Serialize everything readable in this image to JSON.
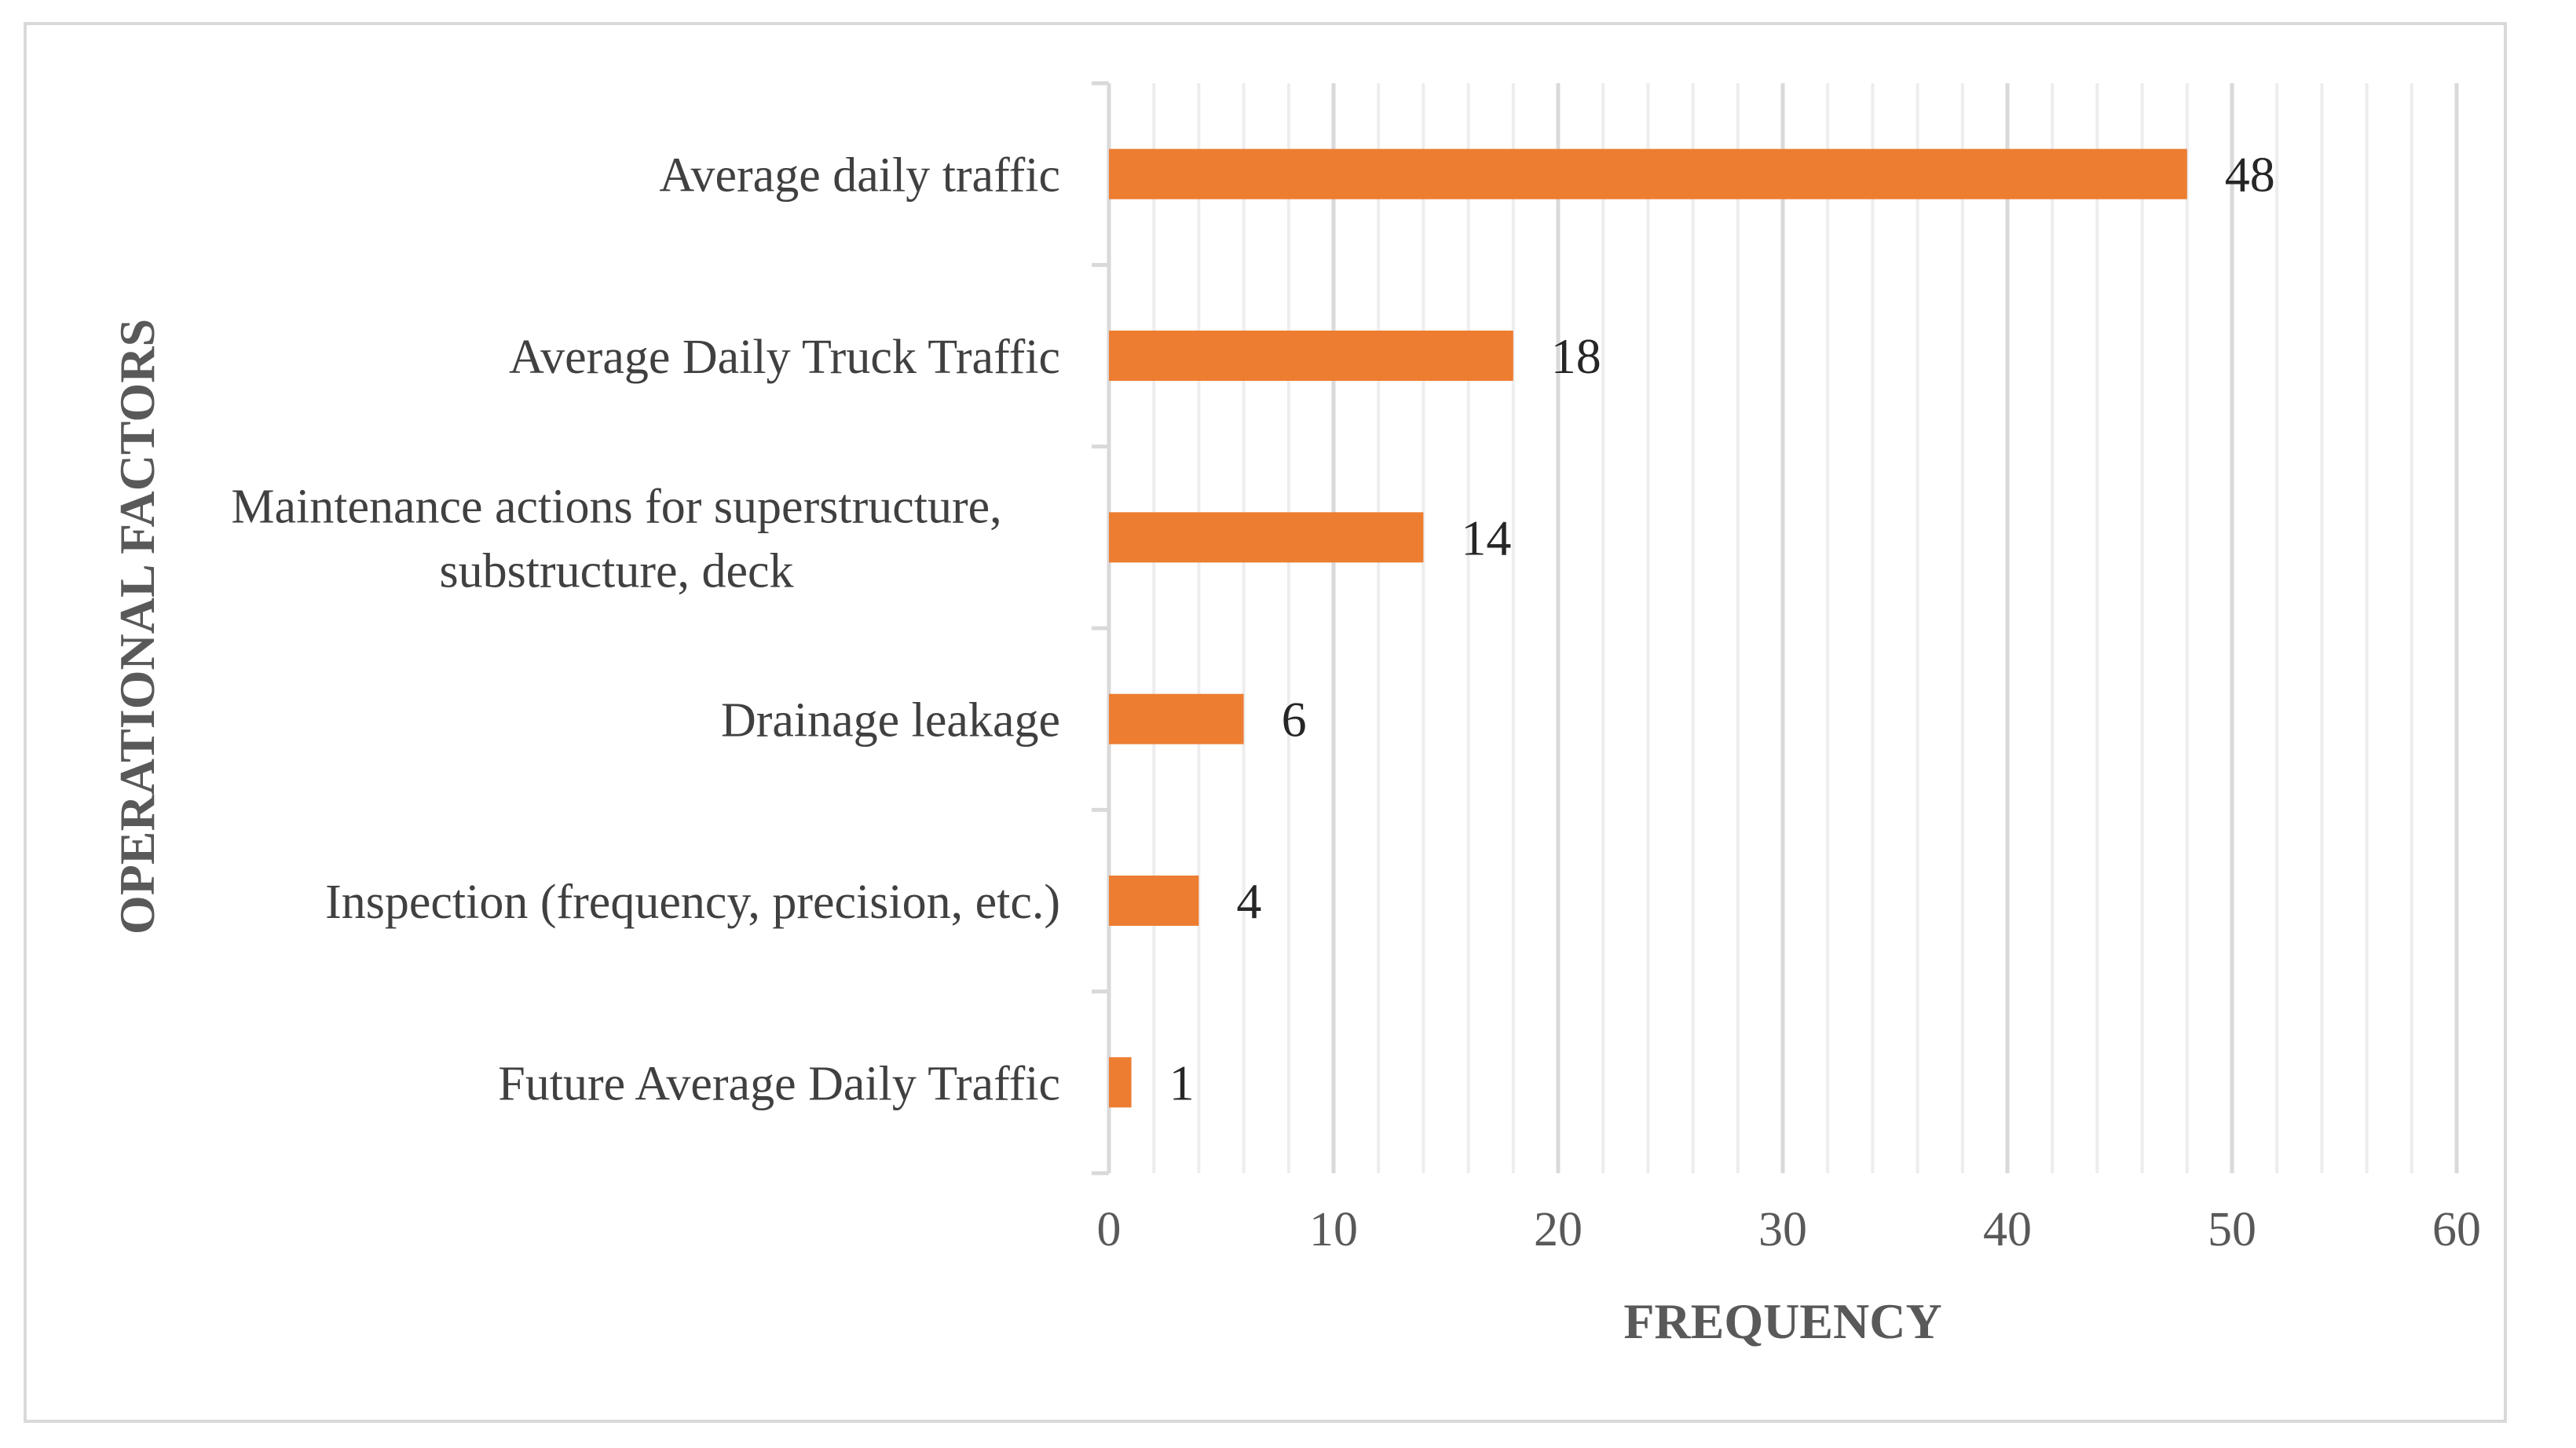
{
  "chart_data": {
    "type": "bar",
    "orientation": "horizontal",
    "categories": [
      "Average daily traffic",
      "Average Daily Truck Traffic",
      "Maintenance actions for superstructure, substructure, deck",
      "Drainage leakage",
      "Inspection (frequency, precision, etc.)",
      "Future Average Daily Traffic"
    ],
    "category_lines": [
      [
        "Average daily traffic"
      ],
      [
        "Average Daily Truck Traffic"
      ],
      [
        "Maintenance actions for superstructure,",
        "substructure, deck"
      ],
      [
        "Drainage leakage"
      ],
      [
        "Inspection (frequency, precision, etc.)"
      ],
      [
        "Future Average Daily Traffic"
      ]
    ],
    "values": [
      48,
      18,
      14,
      6,
      4,
      1
    ],
    "value_labels": [
      "48",
      "18",
      "14",
      "6",
      "4",
      "1"
    ],
    "xlabel": "FREQUENCY",
    "ylabel": "OPERATIONAL FACTORS",
    "xlim": [
      0,
      60
    ],
    "major_ticks": [
      0,
      10,
      20,
      30,
      40,
      50,
      60
    ],
    "major_tick_labels": [
      "0",
      "10",
      "20",
      "30",
      "40",
      "50",
      "60"
    ],
    "minor_step": 2,
    "grid": true,
    "colors": {
      "bar": "#ED7D31",
      "major_grid": "#D9D9D9",
      "minor_grid": "#EDEDED",
      "axis": "#D9D9D9",
      "frame": "#D9D9D9"
    }
  }
}
